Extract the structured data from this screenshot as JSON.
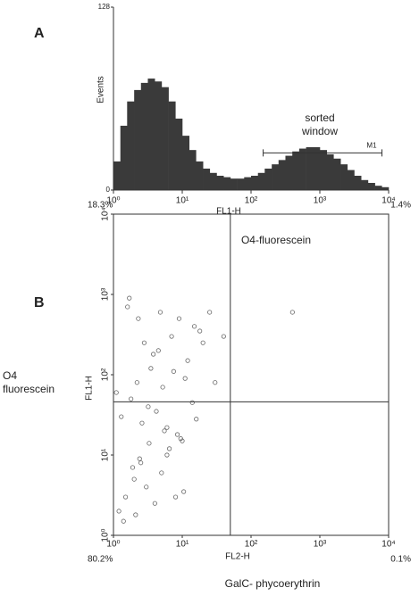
{
  "chart_data": [
    {
      "type": "histogram",
      "panel": "A",
      "xscale": "log",
      "bins": [
        1,
        1.26,
        1.58,
        2,
        2.51,
        3.16,
        3.98,
        5.01,
        6.31,
        7.94,
        10,
        12.6,
        15.8,
        20,
        25.1,
        31.6,
        39.8,
        50.1,
        63.1,
        79.4,
        100,
        126,
        158,
        200,
        251,
        316,
        398,
        501,
        631,
        794,
        1000,
        1260,
        1580,
        2000,
        2510,
        3160,
        3980,
        5010,
        6310,
        7940,
        10000
      ],
      "counts": [
        20,
        45,
        62,
        70,
        75,
        78,
        76,
        72,
        62,
        50,
        38,
        28,
        20,
        15,
        12,
        10,
        9,
        8,
        8,
        9,
        10,
        12,
        15,
        18,
        21,
        24,
        27,
        29,
        30,
        30,
        28,
        25,
        22,
        18,
        14,
        10,
        7,
        5,
        3,
        2
      ],
      "color": "#3a3a3a",
      "xlim": [
        1,
        10000
      ],
      "xticks": [
        {
          "value": 1,
          "label": "10⁰"
        },
        {
          "value": 10,
          "label": "10¹"
        },
        {
          "value": 100,
          "label": "10²"
        },
        {
          "value": 1000,
          "label": "10³"
        },
        {
          "value": 10000,
          "label": "10⁴"
        }
      ],
      "ylim": [
        0,
        128
      ],
      "yticks": [
        0,
        128
      ],
      "ylabel": "Events",
      "xlabel": "FL1-H",
      "caption": "O4-fluorescein",
      "annotation": [
        "sorted",
        "window"
      ],
      "marker": {
        "label": "M1",
        "x": [
          150,
          8000
        ],
        "y": 26
      }
    },
    {
      "type": "scatter",
      "panel": "B",
      "xscale": "log",
      "yscale": "log",
      "x": [
        1.2,
        1.5,
        2,
        2.5,
        3,
        4,
        5,
        6,
        8,
        10,
        1.3,
        1.8,
        2.2,
        3.5,
        4.5,
        7,
        9,
        12,
        15,
        1.1,
        1.6,
        2.8,
        3.2,
        5.5,
        6.5,
        11,
        18,
        25,
        1.4,
        2.1,
        2.6,
        4.2,
        8.5,
        14,
        1.7,
        3.8,
        5.2,
        7.5,
        20,
        30,
        1.9,
        2.4,
        3.3,
        6,
        9.5,
        16,
        40,
        2.3,
        4.8,
        10.5,
        400
      ],
      "y": [
        2,
        3,
        5,
        8,
        4,
        2.5,
        6,
        10,
        3,
        15,
        30,
        50,
        80,
        120,
        200,
        300,
        500,
        150,
        400,
        60,
        700,
        250,
        40,
        20,
        12,
        90,
        350,
        600,
        1.5,
        1.8,
        25,
        35,
        18,
        45,
        900,
        180,
        70,
        110,
        250,
        80,
        7,
        9,
        14,
        22,
        16,
        28,
        300,
        500,
        600,
        3.5,
        600
      ],
      "color": "#666666",
      "xlim": [
        1,
        10000
      ],
      "ylim": [
        1,
        10000
      ],
      "xticks": [
        {
          "value": 1,
          "label": "10⁰"
        },
        {
          "value": 10,
          "label": "10¹"
        },
        {
          "value": 100,
          "label": "10²"
        },
        {
          "value": 1000,
          "label": "10³"
        },
        {
          "value": 10000,
          "label": "10⁴"
        }
      ],
      "yticks": [
        {
          "value": 1,
          "label": "10⁰"
        },
        {
          "value": 10,
          "label": "10¹"
        },
        {
          "value": 100,
          "label": "10²"
        },
        {
          "value": 1000,
          "label": "10³"
        },
        {
          "value": 10000,
          "label": "10⁴"
        }
      ],
      "xlabel": "FL2-H",
      "ylabel": "FL1-H",
      "caption": "GalC- phycoerythrin",
      "side_label": [
        "O4",
        "fluorescein"
      ],
      "quadrant": {
        "x": 50,
        "y": 46,
        "upper_left": "18.3%",
        "upper_right": "1.4%",
        "lower_left": "80.2%",
        "lower_right": "0.1%"
      }
    }
  ]
}
